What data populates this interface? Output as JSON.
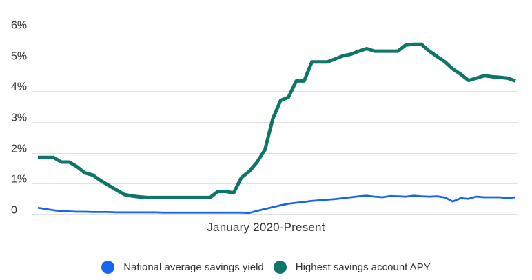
{
  "chart": {
    "xlabel": "January 2020-Present",
    "y_ticks": [
      {
        "label": "6%",
        "value": 6
      },
      {
        "label": "5%",
        "value": 5
      },
      {
        "label": "4%",
        "value": 4
      },
      {
        "label": "3%",
        "value": 3
      },
      {
        "label": "2%",
        "value": 2
      },
      {
        "label": "1%",
        "value": 1
      },
      {
        "label": "0",
        "value": 0
      }
    ],
    "colors": {
      "national_average": "#1565f0",
      "highest_apy": "#0f7568",
      "gridline": "#e2e2e2",
      "text": "#333333",
      "background": "#ffffff"
    }
  },
  "legend": {
    "items": [
      {
        "label": "National average savings yield",
        "color": "#1565f0",
        "series_key": "national_average"
      },
      {
        "label": "Highest savings account APY",
        "color": "#0f7568",
        "series_key": "highest_apy"
      }
    ]
  },
  "chart_data": {
    "type": "line",
    "title": "",
    "xlabel": "January 2020-Present",
    "ylabel": "",
    "ylim": [
      0,
      6
    ],
    "y_tick_labels": [
      "6%",
      "5%",
      "4%",
      "3%",
      "2%",
      "1%",
      "0"
    ],
    "grid": "horizontal",
    "legend_position": "bottom",
    "x_unit": "month",
    "x": [
      "2020-01",
      "2020-02",
      "2020-03",
      "2020-04",
      "2020-05",
      "2020-06",
      "2020-07",
      "2020-08",
      "2020-09",
      "2020-10",
      "2020-11",
      "2020-12",
      "2021-01",
      "2021-02",
      "2021-03",
      "2021-04",
      "2021-05",
      "2021-06",
      "2021-07",
      "2021-08",
      "2021-09",
      "2021-10",
      "2021-11",
      "2021-12",
      "2022-01",
      "2022-02",
      "2022-03",
      "2022-04",
      "2022-05",
      "2022-06",
      "2022-07",
      "2022-08",
      "2022-09",
      "2022-10",
      "2022-11",
      "2022-12",
      "2023-01",
      "2023-02",
      "2023-03",
      "2023-04",
      "2023-05",
      "2023-06",
      "2023-07",
      "2023-08",
      "2023-09",
      "2023-10",
      "2023-11",
      "2023-12",
      "2024-01",
      "2024-02",
      "2024-03",
      "2024-04",
      "2024-05",
      "2024-06",
      "2024-07",
      "2024-08",
      "2024-09",
      "2024-10",
      "2024-11",
      "2024-12",
      "2025-01",
      "2025-02"
    ],
    "series": [
      {
        "name": "National average savings yield",
        "color": "#1565f0",
        "values": [
          0.22,
          0.18,
          0.14,
          0.11,
          0.1,
          0.09,
          0.09,
          0.08,
          0.08,
          0.08,
          0.07,
          0.07,
          0.07,
          0.07,
          0.07,
          0.07,
          0.06,
          0.06,
          0.06,
          0.06,
          0.06,
          0.06,
          0.06,
          0.06,
          0.06,
          0.06,
          0.06,
          0.05,
          0.12,
          0.18,
          0.24,
          0.3,
          0.35,
          0.38,
          0.41,
          0.44,
          0.46,
          0.48,
          0.5,
          0.53,
          0.56,
          0.59,
          0.61,
          0.58,
          0.56,
          0.6,
          0.59,
          0.58,
          0.61,
          0.59,
          0.58,
          0.59,
          0.55,
          0.42,
          0.53,
          0.51,
          0.58,
          0.56,
          0.56,
          0.56,
          0.53,
          0.56
        ]
      },
      {
        "name": "Highest savings account APY",
        "color": "#0f7568",
        "values": [
          1.85,
          1.85,
          1.85,
          1.7,
          1.7,
          1.55,
          1.35,
          1.28,
          1.1,
          0.95,
          0.8,
          0.65,
          0.6,
          0.57,
          0.55,
          0.55,
          0.55,
          0.55,
          0.55,
          0.55,
          0.55,
          0.55,
          0.55,
          0.75,
          0.75,
          0.7,
          1.2,
          1.4,
          1.7,
          2.1,
          3.1,
          3.7,
          3.8,
          4.33,
          4.33,
          4.95,
          4.95,
          4.95,
          5.05,
          5.15,
          5.2,
          5.3,
          5.38,
          5.3,
          5.3,
          5.3,
          5.3,
          5.5,
          5.52,
          5.52,
          5.3,
          5.12,
          4.95,
          4.72,
          4.55,
          4.35,
          4.42,
          4.5,
          4.47,
          4.45,
          4.42,
          4.33
        ]
      }
    ]
  }
}
